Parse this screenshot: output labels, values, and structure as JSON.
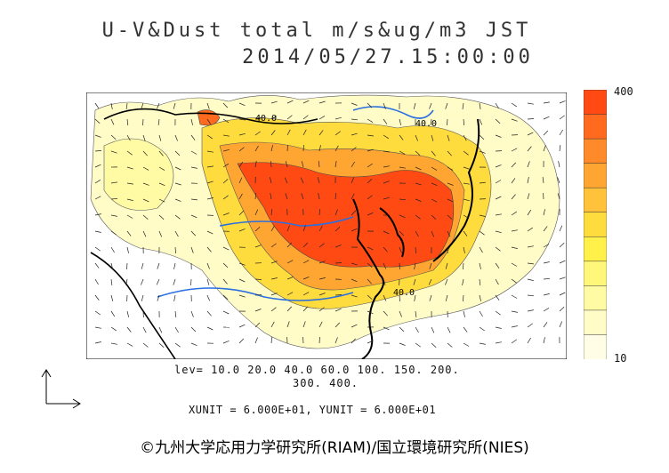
{
  "title_line1": "U-V&Dust total m/s&ug/m3 JST",
  "title_line2": "2014/05/27.15:00:00",
  "colorbar": {
    "max_label": "400",
    "min_label": "10",
    "colors": [
      "#ff4a14",
      "#ff6a1e",
      "#ff8a2a",
      "#ffa532",
      "#ffc23a",
      "#ffdc3e",
      "#fff04a",
      "#fff77a",
      "#fffaa4",
      "#fffcc8",
      "#fffde6"
    ]
  },
  "levels_line1": "lev= 10.0 20.0 40.0 60.0 100. 150. 200.",
  "levels_line2": "300. 400.",
  "units_text": "XUNIT = 6.000E+01, YUNIT = 6.000E+01",
  "copyright": "©九州大学応用力学研究所(RIAM)/国立環境研究所(NIES)",
  "map_labels": [
    "40.0",
    "40.0",
    "40.0"
  ],
  "colors": {
    "land": "#000000",
    "rivers": "#2a6fe0",
    "dust_high": "#ff4a14",
    "dust_low": "#fffcc8"
  }
}
